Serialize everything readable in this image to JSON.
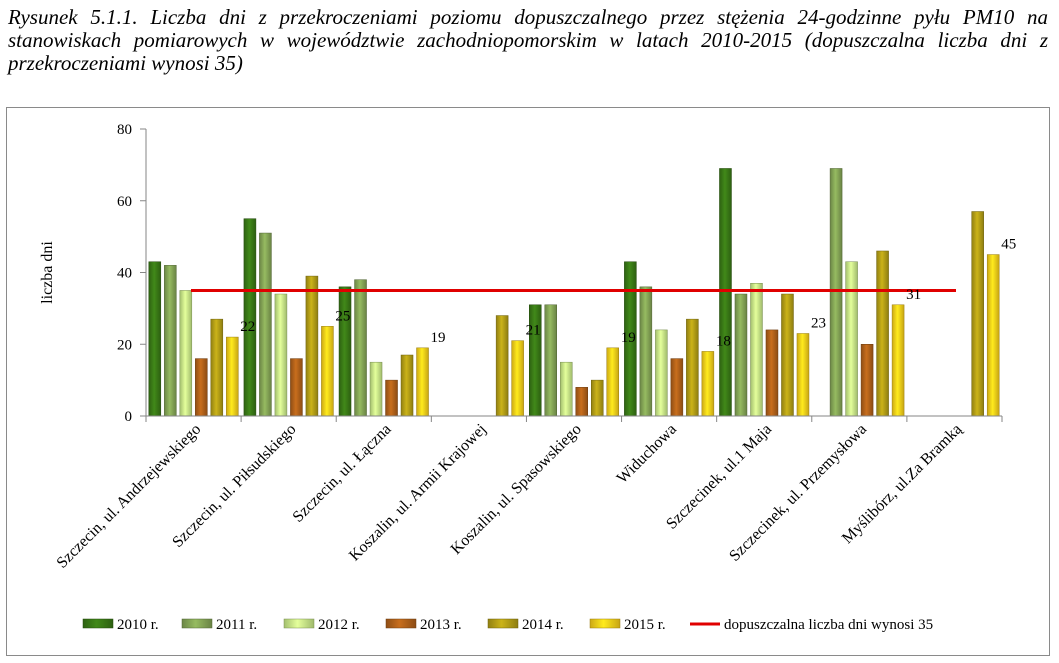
{
  "caption": "Rysunek 5.1.1. Liczba dni z przekroczeniami poziomu dopuszczalnego przez stężenia 24-godzinne pyłu PM10 na stanowiskach pomiarowych w województwie zachodniopomorskim w latach 2010-2015 (dopuszczalna liczba dni z przekroczeniami wynosi 35)",
  "chart_data": {
    "type": "bar",
    "ylabel": "liczba dni",
    "xlabel": "",
    "ylim": [
      0,
      80
    ],
    "yticks": [
      0,
      20,
      40,
      60,
      80
    ],
    "grid": false,
    "legend_position": "bottom",
    "categories": [
      "Szczecin, ul. Andrzejewskiego",
      "Szczecin, ul. Piłsudskiego",
      "Szczecin, ul. Łączna",
      "Koszalin, ul. Armii Krajowej",
      "Koszalin, ul. Spasowskiego",
      "Widuchowa",
      "Szczecinek, ul.1 Maja",
      "Szczecinek, ul. Przemysłowa",
      "Myślibórz, ul.Za Bramką"
    ],
    "series": [
      {
        "name": "2010 r.",
        "color": "#3a7a16",
        "values": [
          43,
          55,
          36,
          null,
          31,
          43,
          69,
          null,
          null
        ]
      },
      {
        "name": "2011 r.",
        "color": "#86a757",
        "values": [
          42,
          51,
          38,
          null,
          31,
          36,
          34,
          69,
          null
        ]
      },
      {
        "name": "2012 r.",
        "color": "#ccef8a",
        "values": [
          35,
          34,
          15,
          null,
          15,
          24,
          37,
          43,
          null
        ]
      },
      {
        "name": "2013 r.",
        "color": "#b3621a",
        "values": [
          16,
          16,
          10,
          null,
          8,
          16,
          24,
          20,
          null
        ]
      },
      {
        "name": "2014 r.",
        "color": "#b5a016",
        "values": [
          27,
          39,
          17,
          28,
          10,
          27,
          34,
          46,
          57
        ]
      },
      {
        "name": "2015 r.",
        "color": "#ffd21a",
        "values": [
          22,
          25,
          19,
          21,
          19,
          18,
          23,
          31,
          45
        ]
      }
    ],
    "data_labels": [
      "22",
      "25",
      "19",
      "21",
      "19",
      "18",
      "23",
      "31",
      "45"
    ],
    "reference_line": {
      "name": "dopuszczalna liczba dni wynosi 35",
      "value": 35,
      "color": "#e00000"
    }
  }
}
